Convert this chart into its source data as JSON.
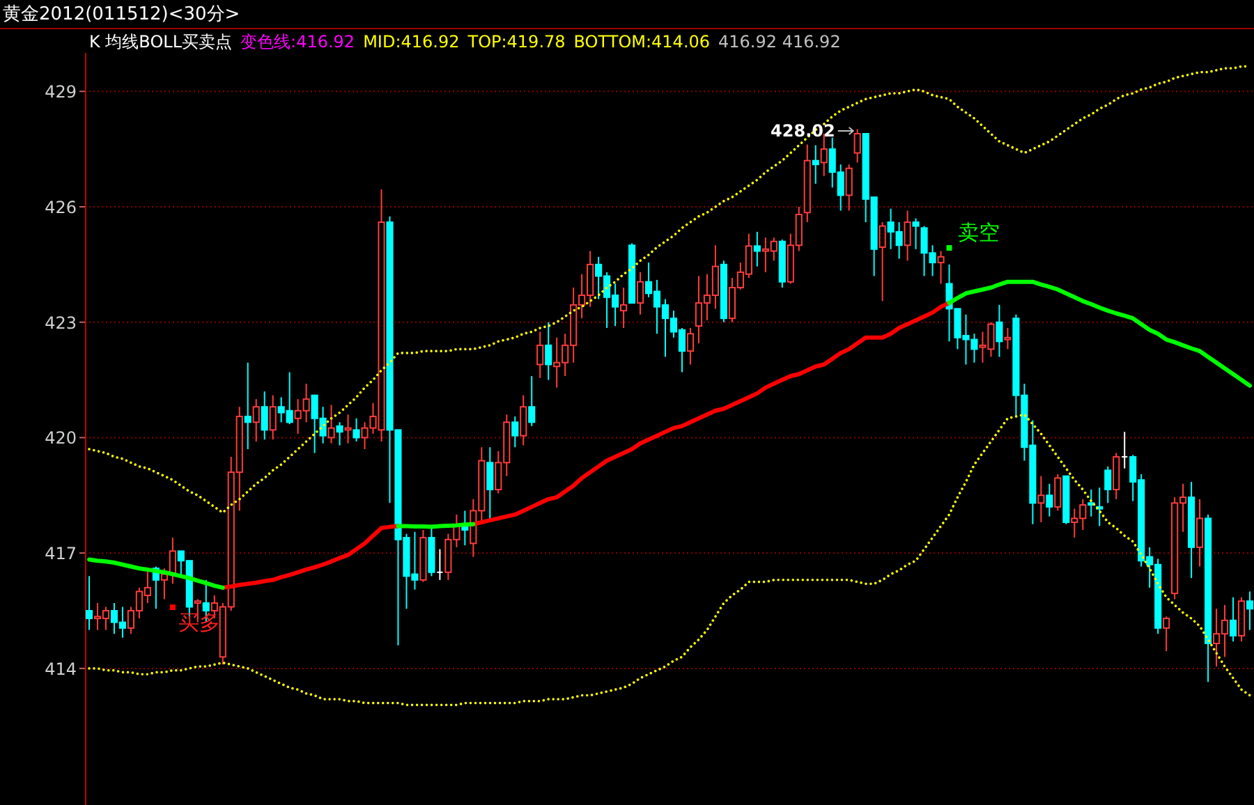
{
  "chart_data": {
    "type": "candlestick",
    "title": "黄金2012(011512)<30分>",
    "annotations": [
      "K  均线BOLL买卖点",
      "变色线:416.92",
      "MID:416.92",
      "TOP:419.78",
      "BOTTOM:414.06",
      "416.92 416.92",
      "428.02",
      "买多",
      "卖空"
    ],
    "categories": [
      null,
      null,
      null,
      null,
      null,
      null,
      null,
      null,
      null,
      null,
      null,
      null,
      null,
      null,
      null,
      null,
      null,
      null,
      null,
      null,
      null,
      null,
      null,
      null,
      null,
      null,
      null,
      null,
      null,
      null,
      null,
      null,
      null,
      null,
      null,
      null,
      null,
      null,
      null,
      null,
      null,
      null,
      null,
      null,
      null,
      null,
      null,
      null,
      null,
      null,
      null,
      null,
      null,
      null,
      null,
      null,
      null,
      null,
      null,
      null,
      null,
      null,
      null,
      null,
      null,
      null,
      null,
      null,
      null,
      null,
      null,
      null,
      null,
      null,
      null,
      null,
      null,
      null,
      null,
      null,
      null,
      null,
      null,
      null,
      null,
      null,
      null,
      null,
      null,
      null,
      null,
      null,
      null,
      null,
      null,
      null,
      null,
      null,
      null,
      null,
      null,
      null,
      null,
      null,
      null,
      null,
      null,
      null,
      null,
      null,
      null,
      null,
      null,
      null,
      null,
      null,
      null,
      null,
      null,
      null,
      null,
      null,
      null,
      null,
      null,
      null,
      null,
      null,
      null,
      null,
      null,
      null,
      null,
      null,
      null,
      null,
      null,
      null,
      null,
      null
    ],
    "ohlc": [
      [
        415.5,
        416.4,
        415.0,
        415.3
      ],
      [
        415.3,
        415.7,
        415.0,
        415.35
      ],
      [
        415.3,
        415.6,
        415.0,
        415.5
      ],
      [
        415.5,
        415.7,
        414.9,
        415.2
      ],
      [
        415.2,
        415.6,
        414.8,
        415.05
      ],
      [
        415.05,
        415.6,
        414.9,
        415.5
      ],
      [
        415.5,
        416.1,
        415.3,
        416.0
      ],
      [
        415.9,
        416.6,
        415.7,
        416.1
      ],
      [
        416.6,
        416.65,
        415.55,
        416.3
      ],
      [
        416.3,
        416.6,
        415.8,
        416.45
      ],
      [
        416.45,
        417.4,
        416.2,
        417.05
      ],
      [
        417.05,
        417.05,
        416.4,
        416.8
      ],
      [
        416.8,
        416.8,
        415.3,
        415.6
      ],
      [
        415.7,
        415.8,
        415.2,
        415.75
      ],
      [
        415.7,
        416.3,
        415.2,
        415.5
      ],
      [
        415.5,
        415.9,
        415.3,
        415.7
      ],
      [
        414.3,
        415.7,
        414.1,
        415.6
      ],
      [
        415.6,
        419.5,
        415.5,
        419.1
      ],
      [
        419.1,
        420.8,
        418.1,
        420.55
      ],
      [
        420.55,
        421.95,
        419.7,
        420.4
      ],
      [
        420.4,
        421.0,
        419.9,
        420.8
      ],
      [
        420.8,
        421.2,
        419.95,
        420.2
      ],
      [
        420.2,
        421.1,
        419.95,
        420.8
      ],
      [
        420.8,
        421.05,
        420.4,
        420.65
      ],
      [
        420.7,
        421.7,
        420.35,
        420.4
      ],
      [
        420.5,
        421.0,
        420.1,
        420.7
      ],
      [
        420.7,
        421.4,
        420.4,
        421.0
      ],
      [
        421.1,
        421.1,
        419.6,
        420.5
      ],
      [
        420.5,
        420.8,
        419.85,
        420.05
      ],
      [
        420.0,
        420.85,
        419.85,
        420.25
      ],
      [
        420.3,
        420.4,
        419.8,
        420.15
      ],
      [
        420.2,
        420.6,
        419.85,
        420.25
      ],
      [
        420.2,
        420.5,
        419.9,
        420.0
      ],
      [
        420.0,
        420.4,
        419.7,
        420.25
      ],
      [
        420.25,
        420.9,
        420.1,
        420.55
      ],
      [
        420.2,
        426.45,
        419.9,
        425.6
      ],
      [
        425.6,
        425.75,
        418.3,
        420.2
      ],
      [
        420.2,
        420.2,
        414.6,
        417.35
      ],
      [
        417.4,
        417.5,
        415.55,
        416.4
      ],
      [
        416.45,
        417.55,
        416.05,
        416.3
      ],
      [
        416.3,
        417.6,
        416.25,
        417.4
      ],
      [
        417.4,
        417.7,
        416.4,
        416.5
      ],
      [
        416.5,
        417.1,
        416.3,
        416.5
      ],
      [
        416.5,
        417.5,
        416.3,
        417.35
      ],
      [
        417.35,
        418.0,
        417.15,
        417.7
      ],
      [
        417.75,
        418.1,
        417.2,
        417.6
      ],
      [
        417.25,
        418.4,
        416.9,
        418.1
      ],
      [
        418.1,
        419.75,
        417.85,
        419.4
      ],
      [
        419.35,
        419.75,
        417.85,
        418.65
      ],
      [
        418.65,
        419.65,
        418.55,
        419.35
      ],
      [
        419.35,
        420.6,
        419.0,
        420.4
      ],
      [
        420.4,
        420.55,
        419.75,
        420.05
      ],
      [
        420.05,
        421.1,
        419.8,
        420.8
      ],
      [
        420.8,
        421.6,
        420.3,
        420.4
      ],
      [
        421.9,
        422.75,
        421.55,
        422.4
      ],
      [
        422.4,
        423.0,
        421.5,
        421.9
      ],
      [
        421.85,
        422.6,
        421.3,
        421.95
      ],
      [
        421.95,
        422.7,
        421.6,
        422.4
      ],
      [
        422.4,
        423.9,
        421.95,
        423.45
      ],
      [
        423.45,
        424.25,
        423.1,
        423.7
      ],
      [
        423.7,
        424.85,
        423.4,
        424.5
      ],
      [
        424.5,
        424.7,
        423.6,
        424.2
      ],
      [
        424.2,
        424.3,
        422.85,
        423.65
      ],
      [
        423.7,
        424.0,
        422.9,
        423.4
      ],
      [
        423.3,
        423.9,
        422.85,
        423.45
      ],
      [
        425.0,
        425.05,
        423.5,
        423.5
      ],
      [
        423.5,
        424.3,
        423.2,
        424.05
      ],
      [
        424.05,
        424.55,
        423.65,
        423.75
      ],
      [
        423.8,
        424.1,
        422.7,
        423.4
      ],
      [
        423.45,
        423.6,
        422.1,
        423.1
      ],
      [
        423.1,
        423.3,
        422.6,
        422.75
      ],
      [
        422.8,
        422.85,
        421.7,
        422.25
      ],
      [
        422.25,
        422.85,
        421.9,
        422.7
      ],
      [
        422.9,
        424.2,
        422.45,
        423.5
      ],
      [
        423.5,
        424.25,
        423.05,
        423.7
      ],
      [
        423.7,
        425.0,
        423.35,
        424.45
      ],
      [
        424.5,
        424.6,
        423.0,
        423.1
      ],
      [
        423.1,
        424.15,
        423.0,
        423.9
      ],
      [
        423.9,
        424.55,
        423.85,
        424.3
      ],
      [
        424.25,
        425.3,
        424.15,
        424.98
      ],
      [
        424.98,
        425.35,
        424.45,
        424.85
      ],
      [
        424.85,
        425.2,
        424.3,
        424.9
      ],
      [
        424.85,
        425.2,
        424.6,
        425.1
      ],
      [
        425.1,
        425.15,
        423.9,
        424.05
      ],
      [
        424.05,
        425.3,
        424.0,
        425.0
      ],
      [
        425.0,
        426.0,
        424.85,
        425.8
      ],
      [
        425.85,
        427.62,
        425.6,
        427.2
      ],
      [
        427.2,
        427.6,
        426.6,
        427.1
      ],
      [
        427.15,
        427.9,
        426.8,
        427.5
      ],
      [
        427.5,
        427.8,
        426.5,
        426.9
      ],
      [
        426.9,
        427.1,
        425.9,
        426.3
      ],
      [
        426.3,
        427.1,
        425.9,
        427.0
      ],
      [
        427.4,
        428.02,
        427.15,
        427.9
      ],
      [
        427.9,
        427.9,
        425.6,
        426.2
      ],
      [
        426.25,
        426.25,
        424.2,
        424.9
      ],
      [
        424.95,
        425.6,
        423.55,
        425.5
      ],
      [
        425.6,
        425.95,
        424.9,
        425.35
      ],
      [
        425.35,
        425.6,
        424.65,
        425.0
      ],
      [
        425.0,
        425.9,
        424.6,
        425.6
      ],
      [
        425.6,
        425.7,
        424.9,
        425.5
      ],
      [
        425.45,
        425.5,
        424.2,
        424.8
      ],
      [
        424.8,
        425.0,
        424.2,
        424.55
      ],
      [
        424.55,
        424.85,
        424.0,
        424.7
      ],
      [
        424.0,
        424.5,
        422.5,
        423.35
      ],
      [
        423.35,
        423.35,
        422.3,
        422.6
      ],
      [
        422.65,
        423.2,
        421.9,
        422.55
      ],
      [
        422.55,
        422.7,
        421.95,
        422.3
      ],
      [
        422.35,
        422.75,
        421.95,
        422.4
      ],
      [
        422.3,
        423.0,
        422.1,
        422.95
      ],
      [
        423.0,
        423.45,
        422.1,
        422.5
      ],
      [
        422.55,
        422.85,
        422.3,
        422.6
      ],
      [
        423.1,
        423.2,
        420.55,
        421.1
      ],
      [
        421.1,
        421.4,
        419.4,
        419.75
      ],
      [
        419.8,
        420.45,
        417.75,
        418.3
      ],
      [
        418.3,
        419.0,
        417.8,
        418.5
      ],
      [
        418.5,
        418.8,
        417.95,
        418.2
      ],
      [
        418.2,
        419.05,
        418.1,
        418.95
      ],
      [
        419.0,
        419.0,
        417.75,
        417.8
      ],
      [
        417.8,
        418.15,
        417.4,
        417.9
      ],
      [
        417.9,
        418.4,
        417.6,
        418.25
      ],
      [
        418.3,
        418.65,
        417.95,
        418.25
      ],
      [
        418.2,
        418.7,
        417.7,
        418.15
      ],
      [
        419.15,
        419.25,
        418.3,
        418.65
      ],
      [
        418.65,
        419.6,
        418.4,
        419.5
      ],
      [
        419.5,
        420.15,
        419.2,
        419.5
      ],
      [
        419.5,
        419.55,
        418.35,
        418.85
      ],
      [
        418.9,
        419.05,
        416.65,
        416.8
      ],
      [
        416.9,
        417.15,
        416.1,
        416.7
      ],
      [
        416.7,
        416.85,
        414.9,
        415.05
      ],
      [
        415.05,
        415.35,
        414.45,
        415.3
      ],
      [
        415.95,
        418.45,
        415.8,
        418.3
      ],
      [
        418.3,
        418.8,
        417.55,
        418.45
      ],
      [
        418.45,
        418.85,
        416.35,
        417.15
      ],
      [
        417.15,
        418.4,
        416.65,
        417.9
      ],
      [
        417.9,
        418.0,
        413.65,
        414.65
      ],
      [
        414.65,
        415.55,
        414.05,
        414.9
      ],
      [
        414.9,
        415.65,
        414.3,
        415.25
      ],
      [
        415.25,
        415.85,
        414.7,
        414.85
      ],
      [
        414.85,
        415.85,
        414.7,
        415.75
      ],
      [
        415.75,
        416.0,
        415.0,
        415.55
      ]
    ],
    "colors": [
      "#00ffff",
      "#ff3c3c",
      "#ff3c3c",
      "#00ffff",
      "#00ffff",
      "#ff3c3c",
      "#ff3c3c",
      "#ff3c3c",
      "#00ffff",
      "#ff3c3c",
      "#ff3c3c",
      "#00ffff",
      "#00ffff",
      "#ff3c3c",
      "#00ffff",
      "#ff3c3c",
      "#ff3c3c",
      "#ff3c3c",
      "#ff3c3c",
      "#00ffff",
      "#ff3c3c",
      "#00ffff",
      "#ff3c3c",
      "#00ffff",
      "#00ffff",
      "#ff3c3c",
      "#ff3c3c",
      "#00ffff",
      "#00ffff",
      "#ff3c3c",
      "#00ffff",
      "#ff3c3c",
      "#00ffff",
      "#ff3c3c",
      "#ff3c3c",
      "#ff3c3c",
      "#00ffff",
      "#00ffff",
      "#00ffff",
      "#00ffff",
      "#ff3c3c",
      "#00ffff",
      "#ffffff",
      "#ff3c3c",
      "#ff3c3c",
      "#00ffff",
      "#ff3c3c",
      "#ff3c3c",
      "#00ffff",
      "#ff3c3c",
      "#ff3c3c",
      "#00ffff",
      "#ff3c3c",
      "#00ffff",
      "#ff3c3c",
      "#00ffff",
      "#ff3c3c",
      "#ff3c3c",
      "#ff3c3c",
      "#ff3c3c",
      "#ff3c3c",
      "#00ffff",
      "#00ffff",
      "#00ffff",
      "#ff3c3c",
      "#00ffff",
      "#ff3c3c",
      "#00ffff",
      "#00ffff",
      "#00ffff",
      "#00ffff",
      "#00ffff",
      "#ff3c3c",
      "#ff3c3c",
      "#ff3c3c",
      "#ff3c3c",
      "#00ffff",
      "#ff3c3c",
      "#ff3c3c",
      "#ff3c3c",
      "#00ffff",
      "#ff3c3c",
      "#ff3c3c",
      "#00ffff",
      "#ff3c3c",
      "#ff3c3c",
      "#ff3c3c",
      "#00ffff",
      "#ff3c3c",
      "#00ffff",
      "#00ffff",
      "#ff3c3c",
      "#ff3c3c",
      "#00ffff",
      "#00ffff",
      "#ff3c3c",
      "#00ffff",
      "#00ffff",
      "#ff3c3c",
      "#00ffff",
      "#00ffff",
      "#00ffff",
      "#ff3c3c",
      "#00ffff",
      "#00ffff",
      "#00ffff",
      "#00ffff",
      "#ff3c3c",
      "#ff3c3c",
      "#00ffff",
      "#ff3c3c",
      "#00ffff",
      "#00ffff",
      "#00ffff",
      "#ff3c3c",
      "#00ffff",
      "#ff3c3c",
      "#00ffff",
      "#ff3c3c",
      "#ff3c3c",
      "#00ffff",
      "#00ffff",
      "#00ffff",
      "#ff3c3c",
      "#ffffff",
      "#00ffff",
      "#00ffff",
      "#00ffff",
      "#00ffff",
      "#ff3c3c",
      "#ff3c3c",
      "#ff3c3c",
      "#00ffff",
      "#ff3c3c",
      "#00ffff",
      "#ff3c3c",
      "#ff3c3c",
      "#00ffff",
      "#ff3c3c",
      "#00ffff"
    ],
    "series": [
      {
        "type": "line",
        "color": "#ffff00",
        "line_style": "dotted",
        "values": [
          419.7,
          419.65,
          419.6,
          419.5,
          419.45,
          419.35,
          419.25,
          419.2,
          419.1,
          419.0,
          418.9,
          418.75,
          418.6,
          418.5,
          418.35,
          418.2,
          418.05,
          418.25,
          418.4,
          418.6,
          418.8,
          418.95,
          419.15,
          419.3,
          419.5,
          419.7,
          419.9,
          420.1,
          420.3,
          420.5,
          420.65,
          420.85,
          421.05,
          421.3,
          421.5,
          421.75,
          421.95,
          422.2,
          422.2,
          422.2,
          422.25,
          422.25,
          422.25,
          422.25,
          422.3,
          422.3,
          422.3,
          422.35,
          422.4,
          422.5,
          422.55,
          422.6,
          422.7,
          422.75,
          422.85,
          422.9,
          423.0,
          423.15,
          423.3,
          423.4,
          423.55,
          423.7,
          423.9,
          424.05,
          424.25,
          424.4,
          424.6,
          424.75,
          424.95,
          425.1,
          425.25,
          425.45,
          425.6,
          425.75,
          425.85,
          426.0,
          426.15,
          426.25,
          426.4,
          426.55,
          426.7,
          426.9,
          427.05,
          427.2,
          427.4,
          427.6,
          427.8,
          428.0,
          428.15,
          428.35,
          428.5,
          428.6,
          428.7,
          428.8,
          428.85,
          428.9,
          428.95,
          428.95,
          429.0,
          429.05,
          429.0,
          428.9,
          428.85,
          428.8,
          428.6,
          428.45,
          428.3,
          428.1,
          427.9,
          427.7,
          427.6,
          427.5,
          427.4,
          427.5,
          427.6,
          427.7,
          427.85,
          428.0,
          428.15,
          428.3,
          428.4,
          428.55,
          428.65,
          428.8,
          428.9,
          428.95,
          429.05,
          429.1,
          429.2,
          429.25,
          429.35,
          429.4,
          429.45,
          429.5,
          429.5,
          429.55,
          429.6,
          429.6,
          429.65,
          429.65
        ]
      },
      {
        "type": "line",
        "color": "#ffff00",
        "line_style": "dotted",
        "values": [
          414.0,
          414.0,
          413.95,
          413.95,
          413.9,
          413.9,
          413.85,
          413.85,
          413.9,
          413.9,
          413.95,
          413.95,
          414.0,
          414.05,
          414.05,
          414.1,
          414.15,
          414.1,
          414.05,
          414.0,
          413.9,
          413.8,
          413.7,
          413.6,
          413.5,
          413.45,
          413.35,
          413.3,
          413.2,
          413.2,
          413.2,
          413.15,
          413.15,
          413.1,
          413.1,
          413.1,
          413.1,
          413.1,
          413.05,
          413.05,
          413.05,
          413.05,
          413.05,
          413.05,
          413.05,
          413.1,
          413.1,
          413.1,
          413.1,
          413.1,
          413.1,
          413.1,
          413.15,
          413.15,
          413.15,
          413.2,
          413.2,
          413.2,
          413.25,
          413.3,
          413.3,
          413.35,
          413.4,
          413.45,
          413.5,
          413.6,
          413.75,
          413.85,
          413.95,
          414.05,
          414.2,
          414.3,
          414.55,
          414.75,
          415.0,
          415.35,
          415.7,
          415.9,
          416.05,
          416.25,
          416.25,
          416.25,
          416.3,
          416.3,
          416.3,
          416.3,
          416.3,
          416.3,
          416.3,
          416.3,
          416.3,
          416.3,
          416.25,
          416.2,
          416.2,
          416.3,
          416.45,
          416.55,
          416.7,
          416.8,
          417.1,
          417.4,
          417.7,
          418.0,
          418.45,
          418.85,
          419.3,
          419.6,
          419.9,
          420.2,
          420.5,
          420.55,
          420.6,
          420.35,
          420.1,
          419.8,
          419.5,
          419.2,
          418.9,
          418.65,
          418.35,
          418.1,
          417.8,
          417.65,
          417.45,
          417.3,
          416.95,
          416.6,
          416.2,
          415.85,
          415.65,
          415.45,
          415.3,
          415.1,
          414.75,
          414.4,
          414.05,
          413.75,
          413.45,
          413.3
        ]
      },
      {
        "type": "line",
        "color": "#ff0000",
        "line_style": "solid",
        "values": [
          null,
          null,
          null,
          null,
          null,
          null,
          null,
          null,
          null,
          null,
          null,
          null,
          null,
          null,
          null,
          null,
          416.1,
          416.13,
          416.17,
          416.2,
          416.23,
          416.27,
          416.3,
          416.37,
          416.43,
          416.5,
          416.57,
          416.63,
          416.7,
          416.78,
          416.87,
          416.95,
          417.1,
          417.25,
          417.45,
          417.65,
          417.68,
          417.7,
          null,
          null,
          null,
          null,
          null,
          null,
          null,
          null,
          417.75,
          417.8,
          417.85,
          417.9,
          417.95,
          418.0,
          418.1,
          418.2,
          418.3,
          418.4,
          418.45,
          418.6,
          418.75,
          418.95,
          419.1,
          419.25,
          419.4,
          419.5,
          419.6,
          419.7,
          419.85,
          419.95,
          420.05,
          420.15,
          420.25,
          420.3,
          420.4,
          420.5,
          420.6,
          420.7,
          420.75,
          420.85,
          420.95,
          421.05,
          421.15,
          421.3,
          421.4,
          421.5,
          421.6,
          421.65,
          421.75,
          421.85,
          421.9,
          422.05,
          422.2,
          422.3,
          422.45,
          422.6,
          422.6,
          422.6,
          422.7,
          422.85,
          422.95,
          423.05,
          423.15,
          423.25,
          423.4,
          423.5,
          null,
          null,
          null,
          null,
          null,
          null,
          null,
          null,
          null,
          null,
          null,
          null,
          null,
          null,
          null,
          null,
          null,
          null,
          null,
          null,
          null,
          null,
          null,
          null,
          null,
          null,
          null,
          null,
          null,
          null,
          null,
          null,
          null,
          null,
          null,
          null
        ]
      },
      {
        "type": "line",
        "color": "#00ff00",
        "line_style": "solid",
        "values": [
          416.83,
          416.8,
          416.78,
          416.75,
          416.7,
          416.65,
          416.6,
          416.57,
          416.53,
          416.5,
          416.45,
          416.4,
          416.35,
          416.28,
          416.22,
          416.15,
          416.1,
          null,
          null,
          null,
          null,
          null,
          null,
          null,
          null,
          null,
          null,
          null,
          null,
          null,
          null,
          null,
          null,
          null,
          null,
          null,
          null,
          417.7,
          417.7,
          417.69,
          417.69,
          417.68,
          417.7,
          417.71,
          417.72,
          417.74,
          417.75,
          null,
          null,
          null,
          null,
          null,
          null,
          null,
          null,
          null,
          null,
          null,
          null,
          null,
          null,
          null,
          null,
          null,
          null,
          null,
          null,
          null,
          null,
          null,
          null,
          null,
          null,
          null,
          null,
          null,
          null,
          null,
          null,
          null,
          null,
          null,
          null,
          null,
          null,
          null,
          null,
          null,
          null,
          null,
          null,
          null,
          null,
          null,
          null,
          null,
          null,
          null,
          null,
          null,
          null,
          null,
          null,
          423.5,
          423.63,
          423.75,
          423.8,
          423.85,
          423.9,
          423.98,
          424.05,
          424.05,
          424.05,
          424.05,
          423.98,
          423.92,
          423.85,
          423.75,
          423.65,
          423.55,
          423.47,
          423.38,
          423.3,
          423.23,
          423.17,
          423.1,
          422.95,
          422.8,
          422.7,
          422.55,
          422.48,
          422.4,
          422.32,
          422.25,
          422.1,
          421.95,
          421.8,
          421.65,
          421.5,
          421.35
        ]
      }
    ],
    "ylim": [
      410.45,
      430.0
    ],
    "yticks": [
      414,
      417,
      420,
      423,
      426,
      429
    ],
    "grid": "y"
  }
}
